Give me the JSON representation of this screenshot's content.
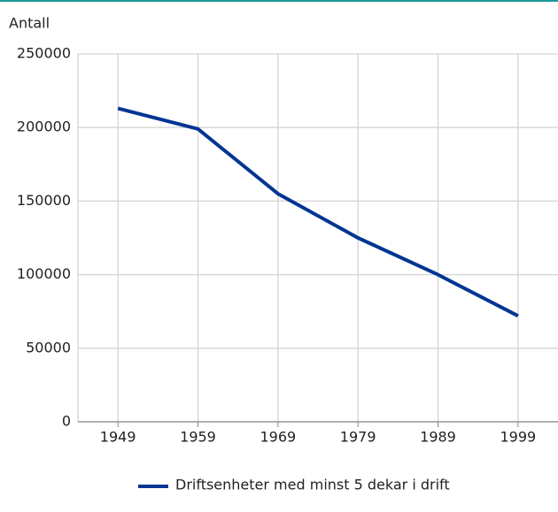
{
  "chart_data": {
    "type": "line",
    "y_label": "Antall",
    "categories": [
      "1949",
      "1959",
      "1969",
      "1979",
      "1989",
      "1999"
    ],
    "series": [
      {
        "name": "Driftsenheter med minst 5 dekar i drift",
        "color": "#003593",
        "values": [
          213000,
          199000,
          155000,
          125000,
          100000,
          72000
        ]
      }
    ],
    "ylim": [
      0,
      250000
    ],
    "yticks": [
      0,
      50000,
      100000,
      150000,
      200000,
      250000
    ],
    "grid": true,
    "legend": "bottom"
  }
}
